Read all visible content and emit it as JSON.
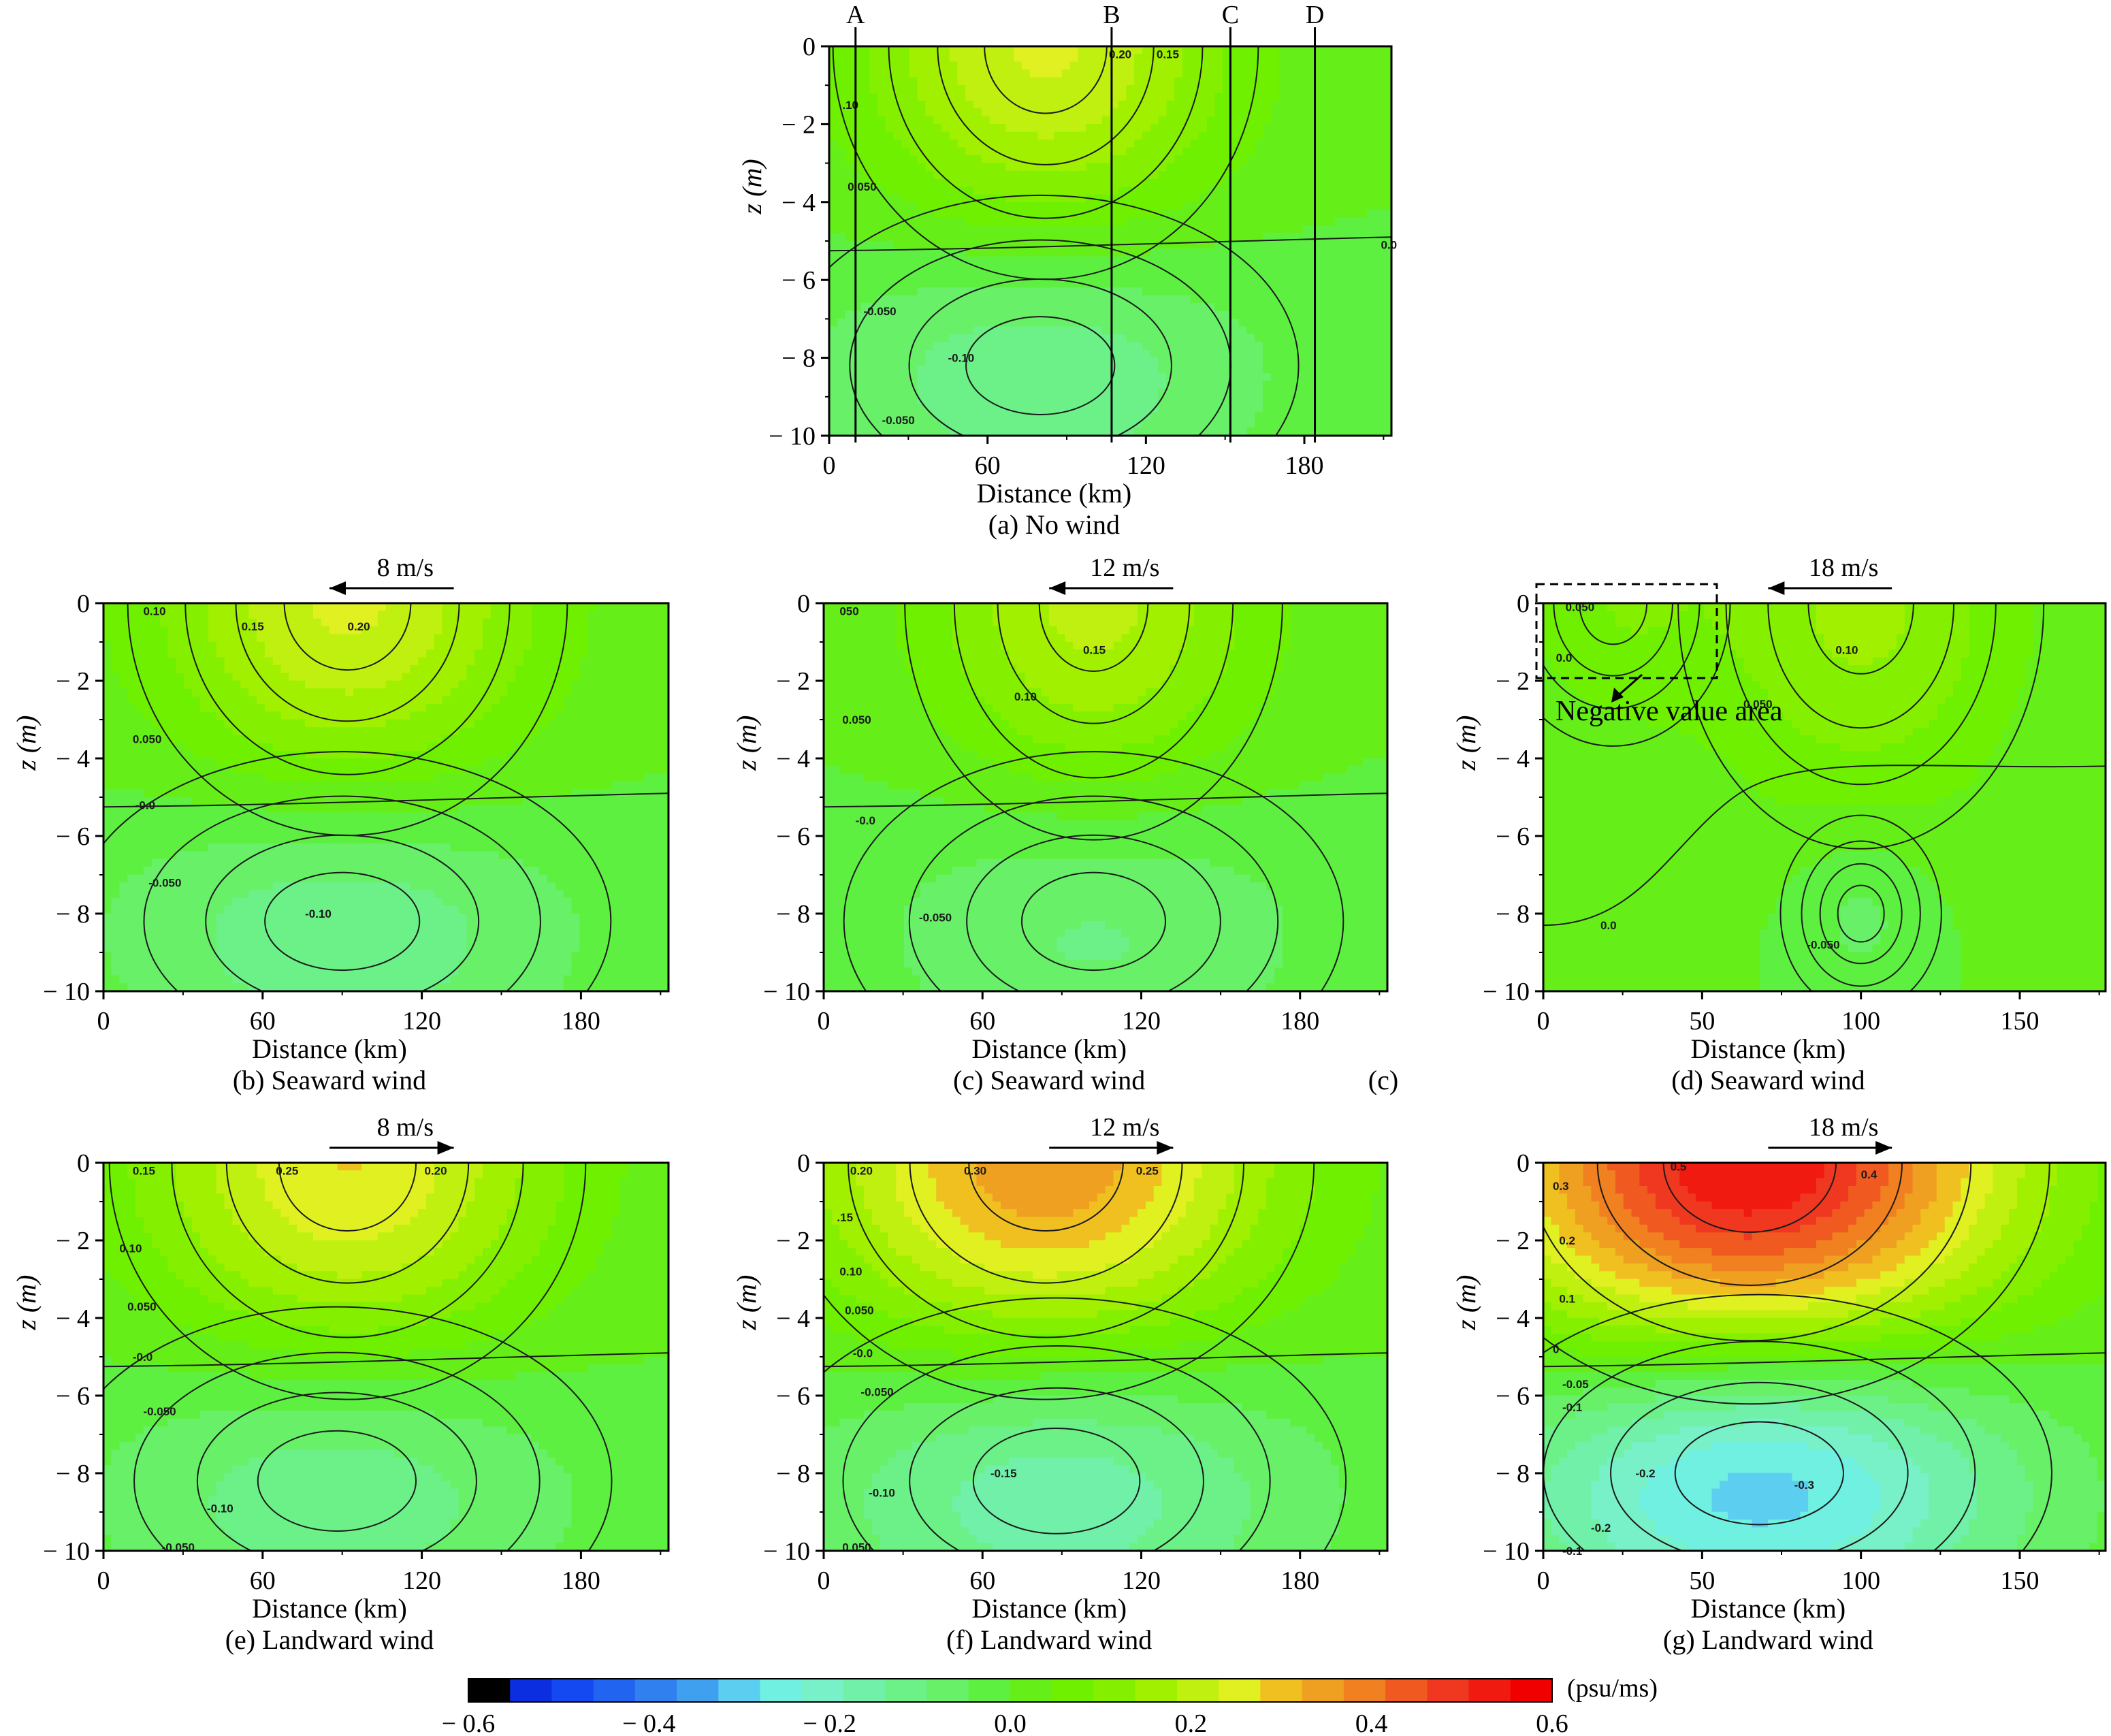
{
  "chart_data": [
    {
      "type": "contour",
      "caption": "(a) No wind",
      "xlabel": "Distance (km)",
      "ylabel": "z (m)",
      "xlim": [
        0,
        213
      ],
      "ylim": [
        -10,
        0
      ],
      "xticks": [
        "0",
        "60",
        "120",
        "180"
      ],
      "xtick_values": [
        0,
        60,
        120,
        180
      ],
      "yticks": [
        "0",
        "− 2",
        "− 4",
        "− 6",
        "− 8",
        "− 10"
      ],
      "section_lines": [
        {
          "label": "A",
          "x": 10
        },
        {
          "label": "B",
          "x": 107
        },
        {
          "label": "C",
          "x": 152
        },
        {
          "label": "D",
          "x": 184
        }
      ],
      "contour_labels": [
        "0.20",
        "0.15",
        ".10",
        "0.050",
        "0.0",
        "-0.050",
        "-0.10",
        "-0.050"
      ],
      "fields": [
        {
          "sign": 1,
          "cx": 82,
          "cz": 0,
          "rx": 70,
          "rz": 5.2,
          "amp": 0.24
        },
        {
          "sign": -1,
          "cx": 80,
          "cz": -8.2,
          "rx": 85,
          "rz": 3.8,
          "amp": 0.14
        }
      ]
    },
    {
      "type": "contour",
      "caption": "(b) Seaward wind",
      "wind": "8 m/s",
      "wind_direction": "left",
      "xlabel": "Distance (km)",
      "ylabel": "z (m)",
      "xlim": [
        0,
        213
      ],
      "ylim": [
        -10,
        0
      ],
      "xticks": [
        "0",
        "60",
        "120",
        "180"
      ],
      "xtick_values": [
        0,
        60,
        120,
        180
      ],
      "yticks": [
        "0",
        "− 2",
        "− 4",
        "− 6",
        "− 8",
        "− 10"
      ],
      "contour_labels": [
        "0.10",
        "0.15",
        "0.20",
        "0.050",
        "-0.0",
        "-0.050",
        "-0.10"
      ],
      "fields": [
        {
          "sign": 1,
          "cx": 92,
          "cz": 0,
          "rx": 72,
          "rz": 5.2,
          "amp": 0.24
        },
        {
          "sign": -1,
          "cx": 90,
          "cz": -8.2,
          "rx": 88,
          "rz": 3.8,
          "amp": 0.14
        }
      ]
    },
    {
      "type": "contour",
      "caption": "(c) Seaward wind",
      "side_note": "(c)",
      "wind": "12 m/s",
      "wind_direction": "left",
      "xlabel": "Distance (km)",
      "ylabel": "z (m)",
      "xlim": [
        0,
        213
      ],
      "ylim": [
        -10,
        0
      ],
      "xticks": [
        "0",
        "60",
        "120",
        "180"
      ],
      "xtick_values": [
        0,
        60,
        120,
        180
      ],
      "yticks": [
        "0",
        "− 2",
        "− 4",
        "− 6",
        "− 8",
        "− 10"
      ],
      "contour_labels": [
        "050",
        "0.15",
        "0.10",
        "0.050",
        "-0.0",
        "-0.050"
      ],
      "fields": [
        {
          "sign": 1,
          "cx": 102,
          "cz": 0,
          "rx": 62,
          "rz": 5.3,
          "amp": 0.2
        },
        {
          "sign": -1,
          "cx": 102,
          "cz": -8.2,
          "rx": 82,
          "rz": 3.8,
          "amp": 0.11
        }
      ]
    },
    {
      "type": "contour",
      "caption": "(d) Seaward wind",
      "wind": "18 m/s",
      "wind_direction": "left",
      "annotation": "Negative value area",
      "xlabel": "Distance (km)",
      "ylabel": "z (m)",
      "xlim": [
        0,
        177
      ],
      "ylim": [
        -10,
        0
      ],
      "xticks": [
        "0",
        "50",
        "100",
        "150"
      ],
      "xtick_values": [
        0,
        50,
        100,
        150
      ],
      "yticks": [
        "0",
        "− 2",
        "− 4",
        "− 6",
        "− 8",
        "− 10"
      ],
      "contour_labels": [
        "0.050",
        "0.0",
        "0.10",
        "0.050",
        "0.0",
        "-0.050"
      ],
      "fields": [
        {
          "sign": 1,
          "cx": 100,
          "cz": 0,
          "rx": 50,
          "rz": 5.5,
          "amp": 0.15
        },
        {
          "sign": 1,
          "cx": 22,
          "cz": 0,
          "rx": 32,
          "rz": 3.2,
          "amp": 0.08
        },
        {
          "sign": -1,
          "cx": 100,
          "cz": -8.0,
          "rx": 22,
          "rz": 2.2,
          "amp": 0.07
        }
      ]
    },
    {
      "type": "contour",
      "caption": "(e) Landward wind",
      "wind": "8 m/s",
      "wind_direction": "right",
      "xlabel": "Distance (km)",
      "ylabel": "z (m)",
      "xlim": [
        0,
        213
      ],
      "ylim": [
        -10,
        0
      ],
      "xticks": [
        "0",
        "60",
        "120",
        "180"
      ],
      "xtick_values": [
        0,
        60,
        120,
        180
      ],
      "yticks": [
        "0",
        "− 2",
        "− 4",
        "− 6",
        "− 8",
        "− 10"
      ],
      "contour_labels": [
        "0.15",
        "0.25",
        "0.20",
        "0.10",
        "0.050",
        "-0.0",
        "-0.050",
        "-0.10",
        "-0.050"
      ],
      "fields": [
        {
          "sign": 1,
          "cx": 92,
          "cz": 0,
          "rx": 78,
          "rz": 5.3,
          "amp": 0.28
        },
        {
          "sign": -1,
          "cx": 88,
          "cz": -8.2,
          "rx": 90,
          "rz": 3.9,
          "amp": 0.14
        }
      ]
    },
    {
      "type": "contour",
      "caption": "(f) Landward wind",
      "wind": "12 m/s",
      "wind_direction": "right",
      "xlabel": "Distance (km)",
      "ylabel": "z (m)",
      "xlim": [
        0,
        213
      ],
      "ylim": [
        -10,
        0
      ],
      "xticks": [
        "0",
        "60",
        "120",
        "180"
      ],
      "xtick_values": [
        0,
        60,
        120,
        180
      ],
      "yticks": [
        "0",
        "− 2",
        "− 4",
        "− 6",
        "− 8",
        "− 10"
      ],
      "contour_labels": [
        "0.20",
        "0.30",
        "0.25",
        ".15",
        "0.10",
        "0.050",
        "-0.0",
        "-0.050",
        "-0.15",
        "-0.10",
        "0.050"
      ],
      "fields": [
        {
          "sign": 1,
          "cx": 84,
          "cz": 0,
          "rx": 88,
          "rz": 5.3,
          "amp": 0.36
        },
        {
          "sign": -1,
          "cx": 88,
          "cz": -8.2,
          "rx": 95,
          "rz": 4.1,
          "amp": 0.19
        }
      ]
    },
    {
      "type": "contour",
      "caption": "(g) Landward wind",
      "wind": "18 m/s",
      "wind_direction": "right",
      "xlabel": "Distance (km)",
      "ylabel": "z (m)",
      "xlim": [
        0,
        177
      ],
      "ylim": [
        -10,
        0
      ],
      "xticks": [
        "0",
        "50",
        "100",
        "150"
      ],
      "xtick_values": [
        0,
        50,
        100,
        150
      ],
      "yticks": [
        "0",
        "− 2",
        "− 4",
        "− 6",
        "− 8",
        "− 10"
      ],
      "contour_labels": [
        "0.3",
        "0.5",
        "0.4",
        "0.2",
        "0.1",
        "0",
        "-0.05",
        "-0.1",
        "-0.2",
        "-0.3",
        "-0.2",
        "-0.1"
      ],
      "fields": [
        {
          "sign": 1,
          "cx": 65,
          "cz": 0,
          "rx": 82,
          "rz": 5.4,
          "amp": 0.56
        },
        {
          "sign": -1,
          "cx": 68,
          "cz": -8.0,
          "rx": 80,
          "rz": 4.0,
          "amp": 0.34
        }
      ]
    }
  ],
  "colorbar": {
    "unit": "(psu/ms)",
    "range": [
      -0.6,
      0.6
    ],
    "tick_labels": [
      "− 0.6",
      "− 0.4",
      "− 0.2",
      "0.0",
      "0.2",
      "0.4",
      "0.6"
    ],
    "tick_values": [
      -0.6,
      -0.4,
      -0.2,
      0.0,
      0.2,
      0.4,
      0.6
    ],
    "colors": [
      "#000000",
      "#0a2ee0",
      "#1448f0",
      "#2064f0",
      "#3080f0",
      "#40a0f0",
      "#5ccff0",
      "#6ff0e0",
      "#78f0c8",
      "#70f0a8",
      "#6cf088",
      "#68f068",
      "#5ef040",
      "#66ee18",
      "#6ef000",
      "#84f000",
      "#a0f000",
      "#c0f010",
      "#e0f020",
      "#f0c020",
      "#f0a020",
      "#f08020",
      "#f05a20",
      "#f03820",
      "#f01a10",
      "#f00000"
    ]
  }
}
